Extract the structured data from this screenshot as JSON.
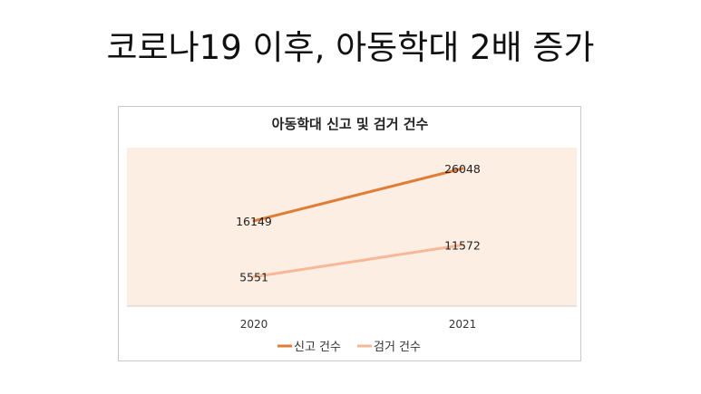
{
  "slide": {
    "title": "코로나19 이후, 아동학대 2배 증가"
  },
  "colors": {
    "plot_background": "#fdeee4",
    "report_line": "#e07c34",
    "arrest_line": "#f6b896",
    "axis": "#cccccc"
  },
  "chart_data": {
    "type": "line",
    "title": "아동학대 신고 및 검거 건수",
    "categories": [
      "2020",
      "2021"
    ],
    "series": [
      {
        "name": "신고 건수",
        "values": [
          16149,
          26048
        ],
        "color": "#e07c34"
      },
      {
        "name": "검거 건수",
        "values": [
          5551,
          11572
        ],
        "color": "#f6b896"
      }
    ],
    "xlabel": "",
    "ylabel": "",
    "ylim": [
      0,
      30000
    ],
    "grid": false,
    "legend": "bottom",
    "data_labels": true
  }
}
